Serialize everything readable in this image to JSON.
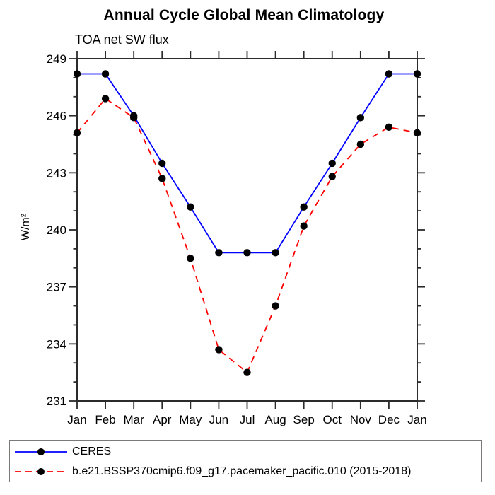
{
  "title": "Annual Cycle Global Mean Climatology",
  "subtitle": "TOA net SW flux",
  "axis_color": "#2b2b2b",
  "chart_data": {
    "type": "line",
    "title": "Annual Cycle Global Mean Climatology",
    "subtitle": "TOA net SW flux",
    "xlabel": "",
    "ylabel": "W/m²",
    "x_categories": [
      "Jan",
      "Feb",
      "Mar",
      "Apr",
      "May",
      "Jun",
      "Jul",
      "Aug",
      "Sep",
      "Oct",
      "Nov",
      "Dec",
      "Jan"
    ],
    "ylim": [
      231,
      249
    ],
    "y_major_ticks": [
      231,
      234,
      237,
      240,
      243,
      246,
      249
    ],
    "y_minor_step": 1,
    "grid": false,
    "legend_position": "bottom",
    "marker": "filled-circle",
    "marker_color": "#000000",
    "series": [
      {
        "name": "CERES",
        "color": "#0000ff",
        "line_style": "solid",
        "values": [
          248.2,
          248.2,
          246.0,
          243.5,
          241.2,
          238.8,
          238.8,
          238.8,
          241.2,
          243.5,
          245.9,
          248.2,
          248.2
        ]
      },
      {
        "name": "b.e21.BSSP370cmip6.f09_g17.pacemaker_pacific.010 (2015-2018)",
        "color": "#ff0000",
        "line_style": "dashed",
        "values": [
          245.1,
          246.9,
          245.9,
          242.7,
          238.5,
          233.7,
          232.5,
          236.0,
          240.2,
          242.8,
          244.5,
          245.4,
          245.1
        ]
      }
    ]
  }
}
